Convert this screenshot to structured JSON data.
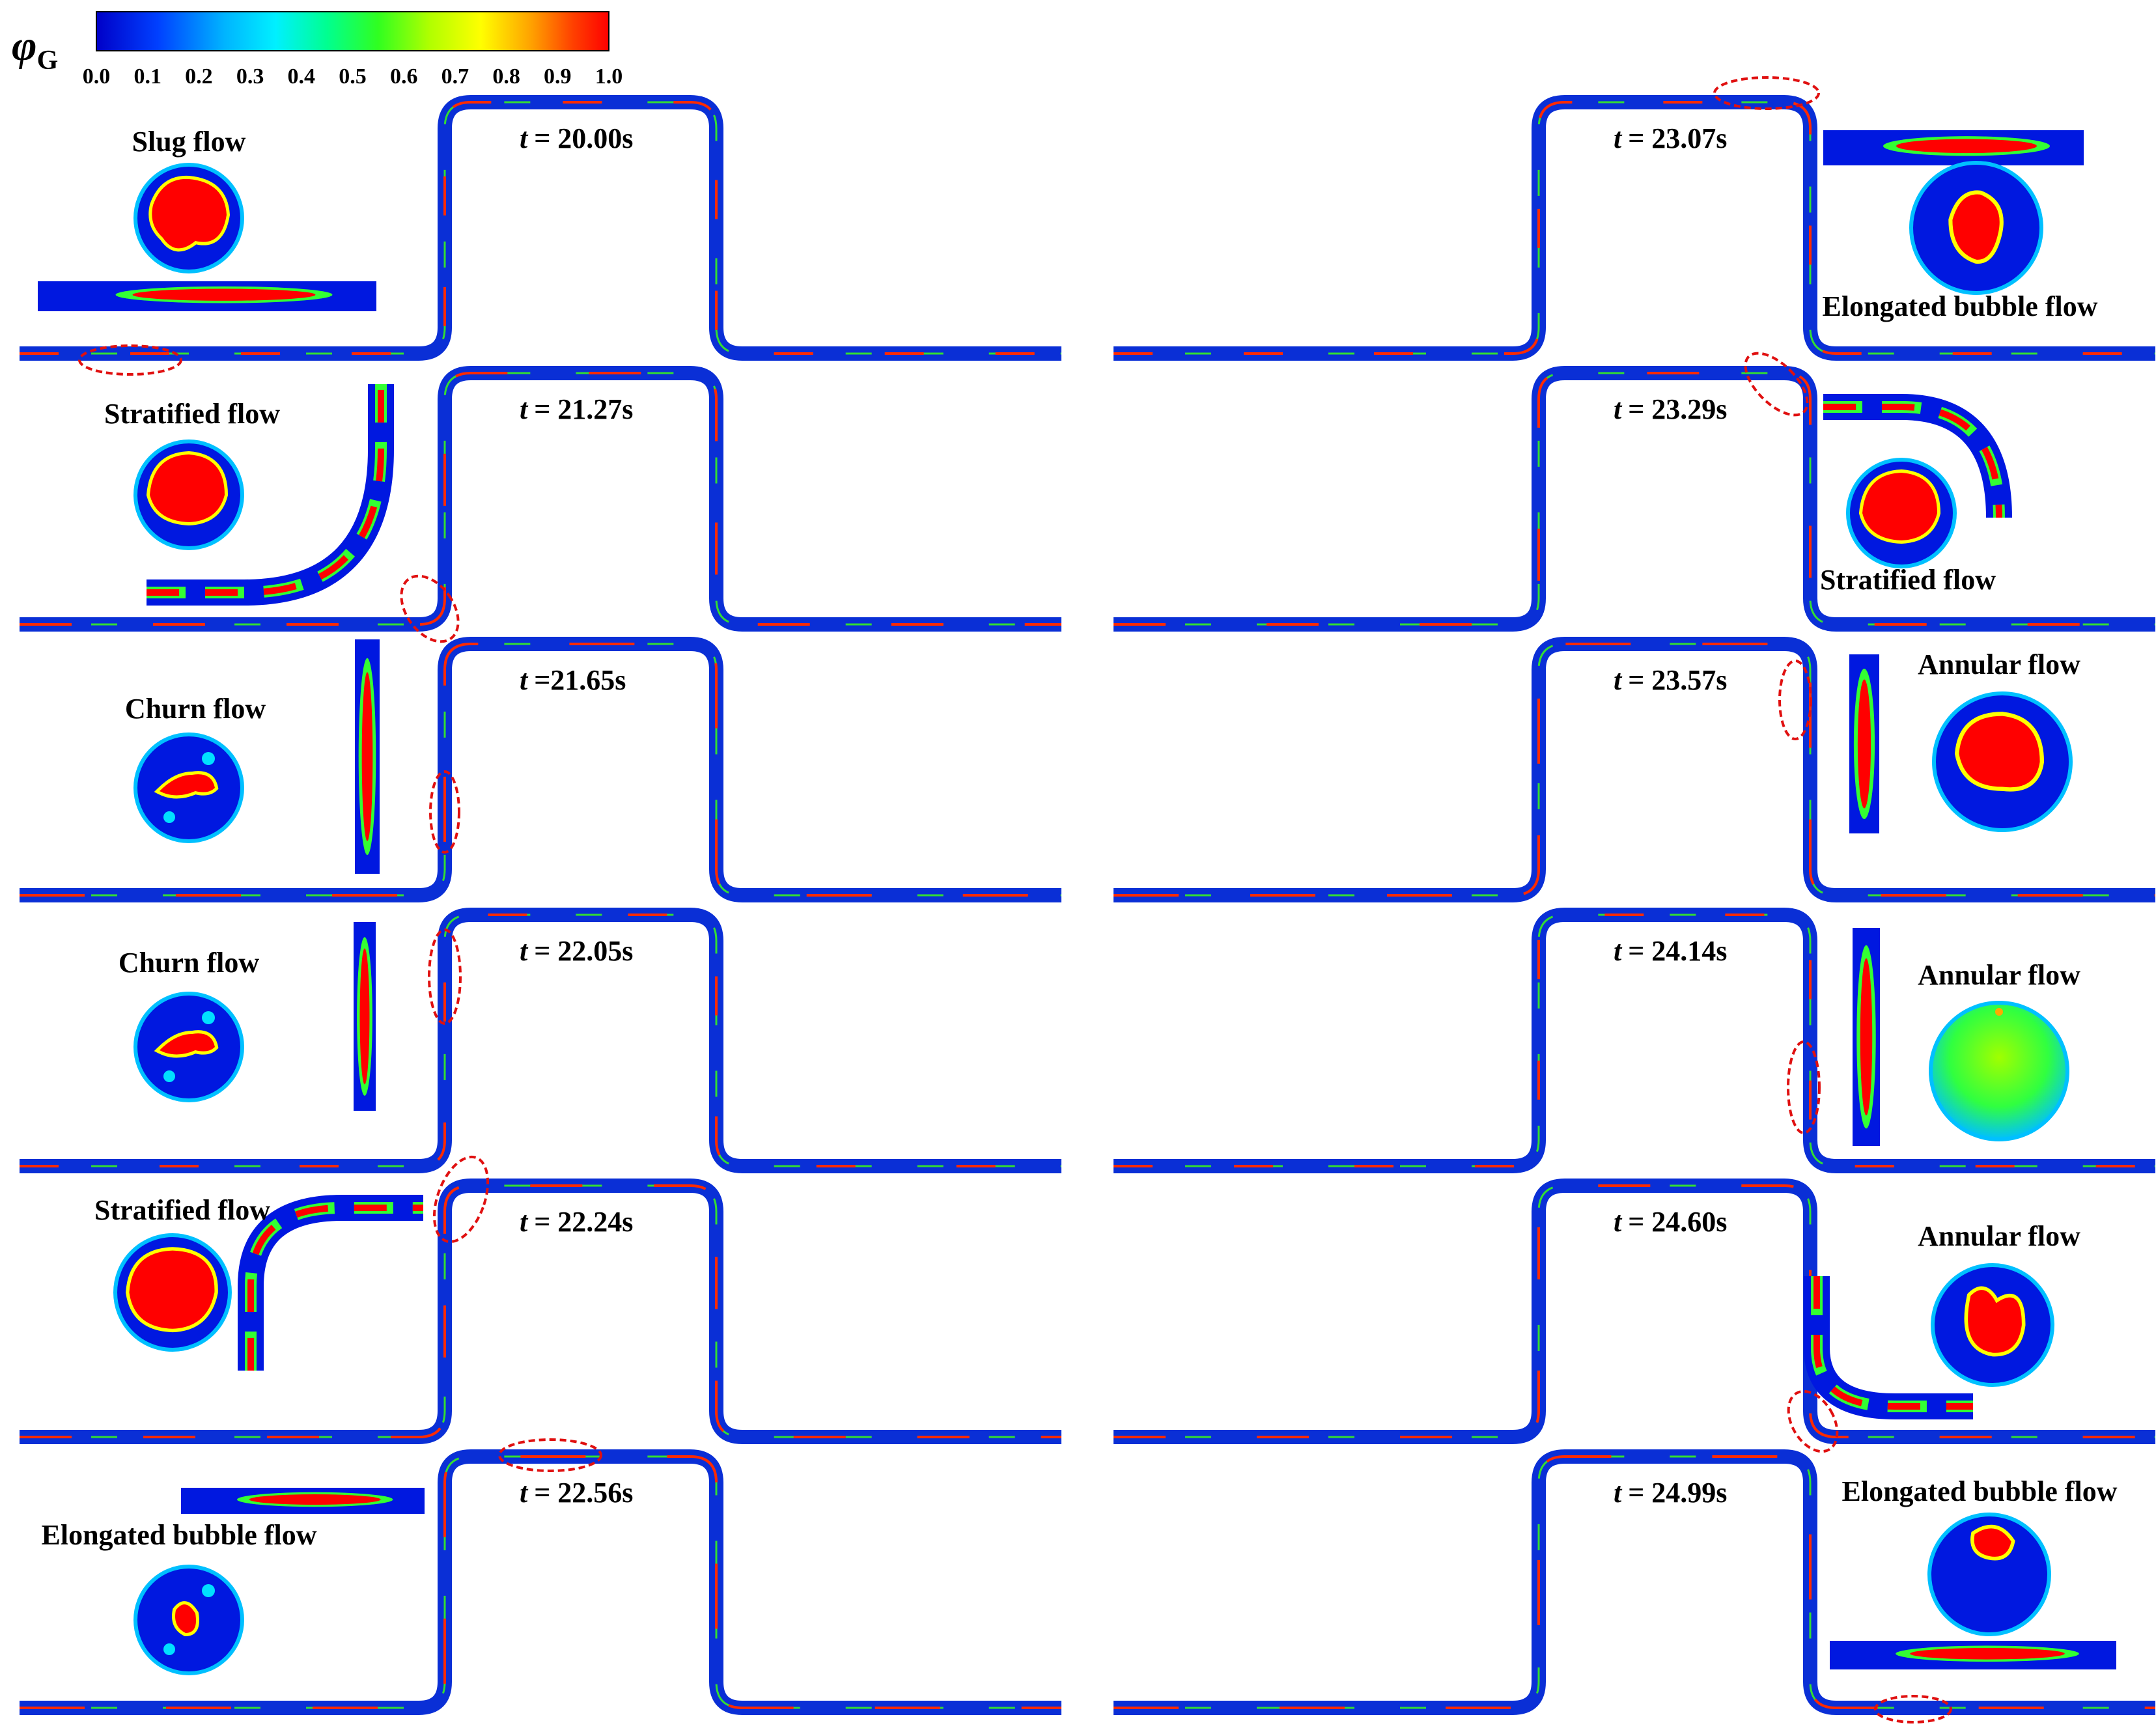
{
  "colorbar": {
    "symbol": "φ",
    "subscript": "G",
    "ticks": [
      "0.0",
      "0.1",
      "0.2",
      "0.3",
      "0.4",
      "0.5",
      "0.6",
      "0.7",
      "0.8",
      "0.9",
      "1.0"
    ],
    "colors": [
      "#0000c8",
      "#0040ff",
      "#00a0ff",
      "#00e0ff",
      "#00ffb0",
      "#20ff40",
      "#a0ff00",
      "#ffff00",
      "#ffb000",
      "#ff5000",
      "#ff0000"
    ]
  },
  "time_prefix": "t",
  "panels": [
    {
      "time": "= 20.00s",
      "flow": "Slug flow"
    },
    {
      "time": "= 21.27s",
      "flow": "Stratified flow"
    },
    {
      "time": "=21.65s",
      "flow": "Churn flow"
    },
    {
      "time": "= 22.05s",
      "flow": "Churn flow"
    },
    {
      "time": "= 22.24s",
      "flow": "Stratified flow"
    },
    {
      "time": "= 22.56s",
      "flow": "Elongated bubble flow"
    },
    {
      "time": "= 23.07s",
      "flow": "Elongated bubble flow"
    },
    {
      "time": "= 23.29s",
      "flow": "Stratified flow"
    },
    {
      "time": "= 23.57s",
      "flow": "Annular flow"
    },
    {
      "time": "= 24.14s",
      "flow": "Annular flow"
    },
    {
      "time": "= 24.60s",
      "flow": "Annular flow"
    },
    {
      "time": "= 24.99s",
      "flow": "Elongated bubble flow"
    }
  ],
  "colors": {
    "pipe": "#0a2fd6",
    "gas": "#ff0000",
    "liquid": "#0000c8",
    "ellipse": "#e01010"
  }
}
